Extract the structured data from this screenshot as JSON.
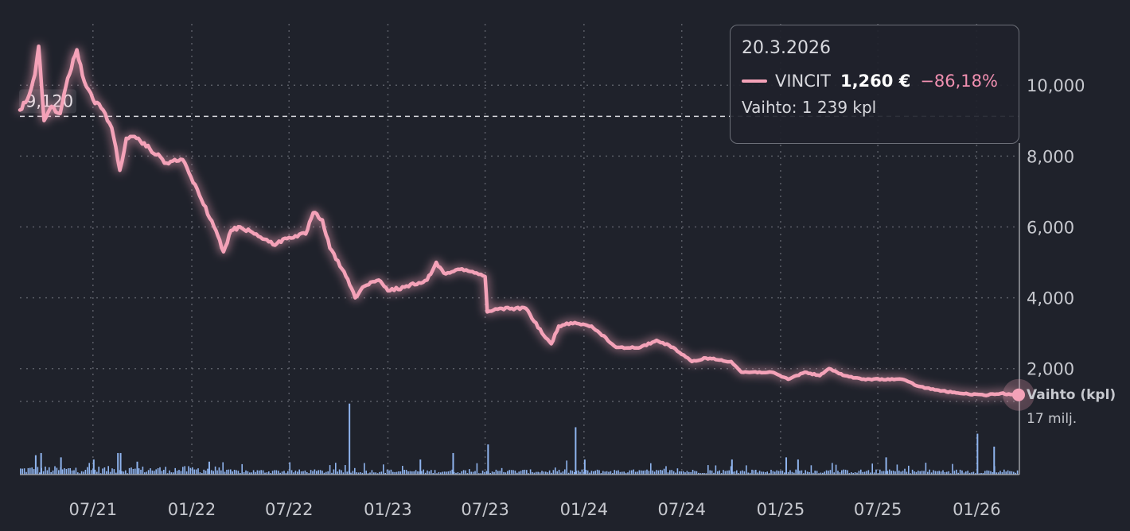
{
  "colors": {
    "background": "#1f222b",
    "price_line": "#f4a2b8",
    "volume_bars": "#8fb4ee",
    "grid": "#5a5d66",
    "text": "#c6c8ce",
    "negative_change": "#f08fb0"
  },
  "tooltip": {
    "date": "20.3.2026",
    "ticker": "VINCIT",
    "price": "1,260 €",
    "change": "−86,18%",
    "volume": "Vaihto: 1 239 kpl"
  },
  "reference_line": {
    "value": 9.12,
    "label": "9,120"
  },
  "volume_axis": {
    "title": "Vaihto (kpl)",
    "max_label": "17 milj."
  },
  "chart_data": {
    "type": "line",
    "series": [
      {
        "name": "VINCIT",
        "points": [
          [
            "2021-02-15",
            9.3
          ],
          [
            "2021-03-01",
            9.6
          ],
          [
            "2021-03-15",
            10.3
          ],
          [
            "2021-03-22",
            11.1
          ],
          [
            "2021-04-01",
            9.0
          ],
          [
            "2021-04-15",
            9.4
          ],
          [
            "2021-05-01",
            9.2
          ],
          [
            "2021-05-15",
            10.2
          ],
          [
            "2021-06-01",
            11.0
          ],
          [
            "2021-06-15",
            10.1
          ],
          [
            "2021-07-01",
            9.6
          ],
          [
            "2021-07-20",
            9.3
          ],
          [
            "2021-08-05",
            8.8
          ],
          [
            "2021-08-20",
            7.6
          ],
          [
            "2021-09-01",
            8.5
          ],
          [
            "2021-09-20",
            8.5
          ],
          [
            "2021-10-15",
            8.2
          ],
          [
            "2021-11-15",
            7.8
          ],
          [
            "2021-12-15",
            7.9
          ],
          [
            "2022-01-15",
            6.9
          ],
          [
            "2022-02-15",
            5.9
          ],
          [
            "2022-03-01",
            5.3
          ],
          [
            "2022-03-15",
            5.9
          ],
          [
            "2022-04-01",
            6.0
          ],
          [
            "2022-05-01",
            5.8
          ],
          [
            "2022-06-01",
            5.5
          ],
          [
            "2022-07-01",
            5.7
          ],
          [
            "2022-08-01",
            5.8
          ],
          [
            "2022-08-15",
            6.4
          ],
          [
            "2022-09-01",
            6.2
          ],
          [
            "2022-09-15",
            5.4
          ],
          [
            "2022-10-15",
            4.6
          ],
          [
            "2022-11-01",
            4.0
          ],
          [
            "2022-11-15",
            4.3
          ],
          [
            "2022-12-15",
            4.5
          ],
          [
            "2023-01-01",
            4.2
          ],
          [
            "2023-02-01",
            4.3
          ],
          [
            "2023-03-15",
            4.5
          ],
          [
            "2023-04-01",
            5.0
          ],
          [
            "2023-04-15",
            4.7
          ],
          [
            "2023-05-15",
            4.8
          ],
          [
            "2023-06-15",
            4.7
          ],
          [
            "2023-07-01",
            4.6
          ],
          [
            "2023-07-05",
            3.6
          ],
          [
            "2023-08-01",
            3.7
          ],
          [
            "2023-09-15",
            3.7
          ],
          [
            "2023-10-15",
            3.0
          ],
          [
            "2023-11-01",
            2.7
          ],
          [
            "2023-11-15",
            3.2
          ],
          [
            "2023-12-15",
            3.3
          ],
          [
            "2024-01-15",
            3.2
          ],
          [
            "2024-03-01",
            2.6
          ],
          [
            "2024-04-15",
            2.6
          ],
          [
            "2024-05-15",
            2.8
          ],
          [
            "2024-06-15",
            2.6
          ],
          [
            "2024-07-01",
            2.4
          ],
          [
            "2024-07-20",
            2.2
          ],
          [
            "2024-08-15",
            2.3
          ],
          [
            "2024-10-01",
            2.2
          ],
          [
            "2024-10-20",
            1.9
          ],
          [
            "2024-12-15",
            1.9
          ],
          [
            "2025-01-15",
            1.7
          ],
          [
            "2025-02-15",
            1.9
          ],
          [
            "2025-03-15",
            1.8
          ],
          [
            "2025-04-01",
            2.0
          ],
          [
            "2025-05-01",
            1.8
          ],
          [
            "2025-06-01",
            1.7
          ],
          [
            "2025-08-15",
            1.7
          ],
          [
            "2025-09-15",
            1.5
          ],
          [
            "2025-10-15",
            1.4
          ],
          [
            "2025-12-01",
            1.3
          ],
          [
            "2026-01-15",
            1.25
          ],
          [
            "2026-02-15",
            1.3
          ],
          [
            "2026-03-20",
            1.26
          ]
        ]
      }
    ],
    "x_tick_labels": [
      "07/21",
      "01/22",
      "07/22",
      "01/23",
      "07/23",
      "01/24",
      "07/24",
      "01/25",
      "07/25",
      "01/26"
    ],
    "x_tick_dates": [
      "2021-07-01",
      "2022-01-01",
      "2022-07-01",
      "2023-01-01",
      "2023-07-01",
      "2024-01-01",
      "2024-07-01",
      "2025-01-01",
      "2025-07-01",
      "2026-01-01"
    ],
    "y_tick_labels": [
      "2,000",
      "4,000",
      "6,000",
      "8,000",
      "10,000"
    ],
    "y_tick_values": [
      2,
      4,
      6,
      8,
      10
    ],
    "x_range": [
      "2021-02-15",
      "2026-03-20"
    ],
    "y_range": [
      -0.16,
      11.62
    ],
    "grid": true,
    "volume": {
      "unit": "kpl",
      "max": 17000000,
      "spikes": [
        [
          "2021-03-15",
          4.5
        ],
        [
          "2021-03-25",
          5.0
        ],
        [
          "2021-05-01",
          4.0
        ],
        [
          "2021-07-01",
          3.5
        ],
        [
          "2021-08-15",
          5.0
        ],
        [
          "2021-08-20",
          5.0
        ],
        [
          "2021-09-20",
          3.0
        ],
        [
          "2022-02-01",
          3.0
        ],
        [
          "2022-10-20",
          16.5
        ],
        [
          "2023-03-01",
          3.5
        ],
        [
          "2023-05-01",
          5.0
        ],
        [
          "2023-07-05",
          7.0
        ],
        [
          "2023-12-15",
          11.0
        ],
        [
          "2024-01-01",
          3.5
        ],
        [
          "2024-10-01",
          3.5
        ],
        [
          "2025-01-10",
          4.0
        ],
        [
          "2025-02-01",
          3.5
        ],
        [
          "2025-07-15",
          4.0
        ],
        [
          "2026-01-01",
          9.5
        ],
        [
          "2026-02-01",
          6.5
        ]
      ],
      "baseline_range": [
        0.3,
        1.6
      ]
    }
  }
}
